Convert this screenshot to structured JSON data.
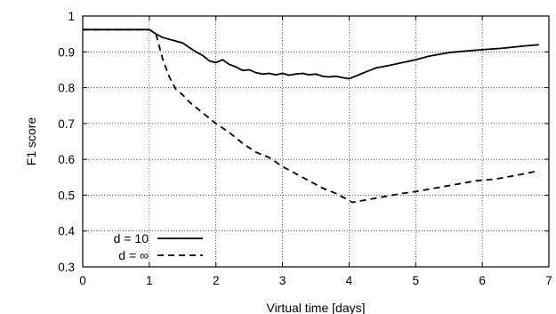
{
  "chart_data": {
    "type": "line",
    "title": "",
    "xlabel": "Virtual time [days]",
    "ylabel": "F1 score",
    "xlim": [
      0,
      7
    ],
    "ylim": [
      0.3,
      1.0
    ],
    "xticks": [
      0,
      1,
      2,
      3,
      4,
      5,
      6,
      7
    ],
    "yticks": [
      0.3,
      0.4,
      0.5,
      0.6,
      0.7,
      0.8,
      0.9,
      1.0
    ],
    "x_tick_labels": [
      "0",
      "1",
      "2",
      "3",
      "4",
      "5",
      "6",
      "7"
    ],
    "y_tick_labels": [
      "0.3",
      "0.4",
      "0.5",
      "0.6",
      "0.7",
      "0.8",
      "0.9",
      "1"
    ],
    "grid": true,
    "legend_position": "bottom-left",
    "series": [
      {
        "name": "d = 10",
        "style": "solid",
        "color": "#000000",
        "x": [
          0,
          1.0,
          1.1,
          1.2,
          1.3,
          1.4,
          1.5,
          1.6,
          1.7,
          1.8,
          1.9,
          2.0,
          2.1,
          2.2,
          2.3,
          2.4,
          2.5,
          2.6,
          2.7,
          2.8,
          2.9,
          3.0,
          3.1,
          3.2,
          3.3,
          3.4,
          3.5,
          3.6,
          3.7,
          3.8,
          3.9,
          4.0,
          4.2,
          4.4,
          4.6,
          4.8,
          5.0,
          5.2,
          5.5,
          5.8,
          6.0,
          6.3,
          6.6,
          6.85
        ],
        "y": [
          0.962,
          0.962,
          0.95,
          0.94,
          0.935,
          0.93,
          0.925,
          0.912,
          0.9,
          0.89,
          0.875,
          0.87,
          0.878,
          0.865,
          0.858,
          0.848,
          0.85,
          0.842,
          0.838,
          0.84,
          0.836,
          0.84,
          0.835,
          0.838,
          0.84,
          0.836,
          0.838,
          0.832,
          0.83,
          0.832,
          0.828,
          0.825,
          0.84,
          0.855,
          0.862,
          0.87,
          0.878,
          0.888,
          0.898,
          0.903,
          0.906,
          0.91,
          0.916,
          0.92
        ]
      },
      {
        "name": "d = ∞",
        "style": "dashed",
        "color": "#000000",
        "x": [
          0,
          1.0,
          1.1,
          1.2,
          1.3,
          1.4,
          1.5,
          1.6,
          1.8,
          2.0,
          2.2,
          2.4,
          2.6,
          2.8,
          3.0,
          3.2,
          3.4,
          3.6,
          3.8,
          3.95,
          4.05,
          4.2,
          4.5,
          4.8,
          5.0,
          5.3,
          5.6,
          5.9,
          6.2,
          6.5,
          6.85
        ],
        "y": [
          0.962,
          0.962,
          0.95,
          0.88,
          0.83,
          0.795,
          0.78,
          0.76,
          0.73,
          0.7,
          0.675,
          0.645,
          0.62,
          0.605,
          0.58,
          0.56,
          0.54,
          0.52,
          0.505,
          0.49,
          0.48,
          0.485,
          0.495,
          0.505,
          0.51,
          0.52,
          0.53,
          0.54,
          0.545,
          0.555,
          0.568
        ]
      }
    ]
  }
}
